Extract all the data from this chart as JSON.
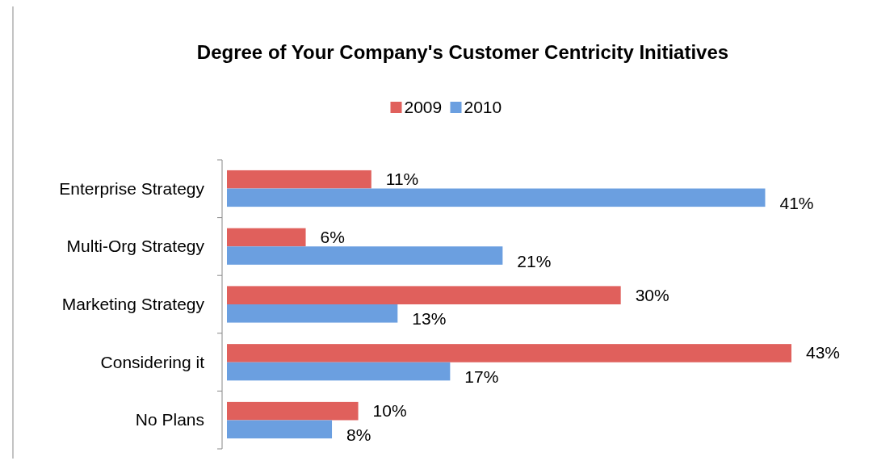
{
  "chart_data": {
    "type": "bar",
    "orientation": "horizontal",
    "title": "Degree of Your Company's Customer Centricity Initiatives",
    "categories": [
      "Enterprise Strategy",
      "Multi-Org Strategy",
      "Marketing Strategy",
      "Considering it",
      "No Plans"
    ],
    "series": [
      {
        "name": "2009",
        "color": "#e0605c",
        "values": [
          11,
          6,
          30,
          43,
          10
        ],
        "value_labels": [
          "11%",
          "6%",
          "30%",
          "43%",
          "10%"
        ]
      },
      {
        "name": "2010",
        "color": "#6b9fe0",
        "values": [
          41,
          21,
          13,
          17,
          8
        ],
        "value_labels": [
          "41%",
          "21%",
          "13%",
          "17%",
          "8%"
        ]
      }
    ],
    "legend": "top",
    "grid": false
  }
}
